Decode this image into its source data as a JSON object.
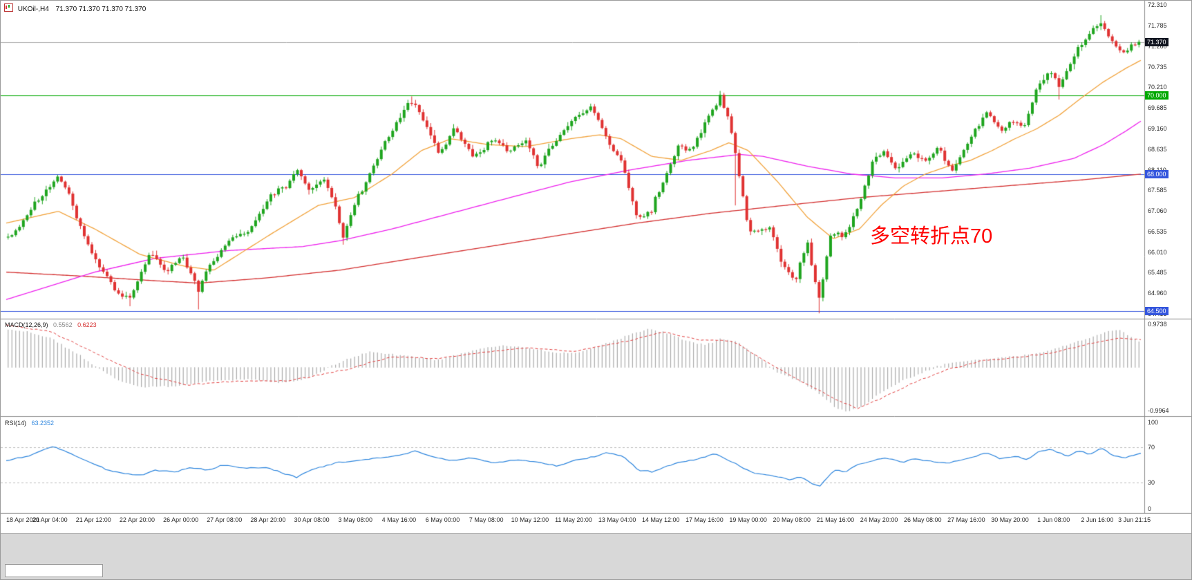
{
  "header": {
    "symbol": "UKOil-,H4",
    "ohlc": "71.370 71.370 71.370 71.370"
  },
  "annotation": {
    "text": "多空转折点70",
    "color": "#FF0000"
  },
  "levels": {
    "current_price": {
      "value": 71.37,
      "label": "71.370"
    },
    "hlines": [
      {
        "value": 70.0,
        "label": "70.000",
        "color": "#00A800"
      },
      {
        "value": 68.0,
        "label": "68.000",
        "color": "#3355DD"
      },
      {
        "value": 64.5,
        "label": "64.500",
        "color": "#3355DD"
      }
    ]
  },
  "panes": {
    "macd": {
      "label": "MACD(12,26,9)",
      "value_main": "0.5562",
      "value_signal": "0.6223",
      "axis_max_label": "0.9738",
      "axis_min_label": "-0.9964"
    },
    "rsi": {
      "label": "RSI(14)",
      "value": "63.2352",
      "axis_labels": [
        "100",
        "70",
        "30",
        "0"
      ]
    }
  },
  "colors": {
    "up": "#1FA51F",
    "down": "#E03232",
    "ma_fast": "#F2A33C",
    "ma_mid": "#EE22EE",
    "ma_slow": "#D43030",
    "macd_hist": "#ABABAB",
    "macd_signal": "#E34040",
    "rsi_line": "#2E86DE",
    "bid_line": "#A8A8A8",
    "badge_bg": "#10141F",
    "separator": "#8A8A8A",
    "tick_text": "#2a2a2a"
  },
  "chart_data": {
    "type": "candlestick",
    "title": "UKOil-,H4",
    "bars": 298,
    "price_axis": {
      "max": 72.42,
      "min": 64.33,
      "tick_labels": [
        "72.310",
        "71.785",
        "71.260",
        "70.735",
        "70.210",
        "69.685",
        "69.160",
        "68.635",
        "68.110",
        "67.585",
        "67.060",
        "66.535",
        "66.010",
        "65.485",
        "64.960",
        "64.435"
      ]
    },
    "x_tick_labels": [
      "18 Apr 2021",
      "20 Apr 04:00",
      "21 Apr 12:00",
      "22 Apr 20:00",
      "26 Apr 00:00",
      "27 Apr 08:00",
      "28 Apr 20:00",
      "30 Apr 08:00",
      "3 May 08:00",
      "4 May 16:00",
      "6 May 00:00",
      "7 May 08:00",
      "10 May 12:00",
      "11 May 20:00",
      "13 May 04:00",
      "14 May 12:00",
      "17 May 16:00",
      "19 May 00:00",
      "20 May 08:00",
      "21 May 16:00",
      "24 May 20:00",
      "26 May 08:00",
      "27 May 16:00",
      "30 May 20:00",
      "1 Jun 08:00",
      "2 Jun 16:00",
      "3 Jun 21:15"
    ],
    "price_path": [
      [
        0.004,
        66.4
      ],
      [
        0.026,
        67.3
      ],
      [
        0.046,
        67.95
      ],
      [
        0.055,
        67.5
      ],
      [
        0.062,
        66.9
      ],
      [
        0.078,
        65.8
      ],
      [
        0.098,
        65.0
      ],
      [
        0.108,
        64.8
      ],
      [
        0.118,
        65.4
      ],
      [
        0.127,
        66.05
      ],
      [
        0.141,
        65.5
      ],
      [
        0.154,
        65.9
      ],
      [
        0.165,
        65.35
      ],
      [
        0.169,
        64.95
      ],
      [
        0.176,
        65.5
      ],
      [
        0.196,
        66.3
      ],
      [
        0.216,
        66.6
      ],
      [
        0.232,
        67.4
      ],
      [
        0.248,
        67.75
      ],
      [
        0.255,
        68.1
      ],
      [
        0.268,
        67.6
      ],
      [
        0.281,
        67.9
      ],
      [
        0.29,
        67.2
      ],
      [
        0.297,
        66.45
      ],
      [
        0.307,
        67.2
      ],
      [
        0.327,
        68.4
      ],
      [
        0.344,
        69.3
      ],
      [
        0.356,
        69.9
      ],
      [
        0.369,
        69.3
      ],
      [
        0.382,
        68.5
      ],
      [
        0.395,
        69.2
      ],
      [
        0.412,
        68.4
      ],
      [
        0.428,
        68.9
      ],
      [
        0.444,
        68.6
      ],
      [
        0.458,
        68.85
      ],
      [
        0.469,
        68.15
      ],
      [
        0.484,
        68.9
      ],
      [
        0.497,
        69.3
      ],
      [
        0.516,
        69.75
      ],
      [
        0.529,
        68.9
      ],
      [
        0.542,
        68.3
      ],
      [
        0.557,
        66.85
      ],
      [
        0.569,
        67.1
      ],
      [
        0.58,
        67.9
      ],
      [
        0.592,
        68.7
      ],
      [
        0.605,
        68.6
      ],
      [
        0.618,
        69.4
      ],
      [
        0.629,
        70.0
      ],
      [
        0.637,
        69.4
      ],
      [
        0.644,
        68.3
      ],
      [
        0.654,
        66.6
      ],
      [
        0.663,
        66.5
      ],
      [
        0.673,
        66.7
      ],
      [
        0.685,
        65.6
      ],
      [
        0.696,
        65.3
      ],
      [
        0.706,
        66.3
      ],
      [
        0.716,
        64.8
      ],
      [
        0.727,
        66.5
      ],
      [
        0.738,
        66.4
      ],
      [
        0.753,
        67.3
      ],
      [
        0.763,
        68.3
      ],
      [
        0.774,
        68.6
      ],
      [
        0.784,
        68.1
      ],
      [
        0.799,
        68.6
      ],
      [
        0.81,
        68.3
      ],
      [
        0.822,
        68.65
      ],
      [
        0.833,
        68.05
      ],
      [
        0.85,
        68.9
      ],
      [
        0.864,
        69.6
      ],
      [
        0.876,
        69.1
      ],
      [
        0.889,
        69.35
      ],
      [
        0.897,
        69.2
      ],
      [
        0.908,
        70.1
      ],
      [
        0.92,
        70.65
      ],
      [
        0.929,
        70.25
      ],
      [
        0.945,
        71.3
      ],
      [
        0.955,
        71.55
      ],
      [
        0.964,
        71.85
      ],
      [
        0.974,
        71.4
      ],
      [
        0.984,
        71.1
      ],
      [
        0.996,
        71.37
      ]
    ],
    "wick_events": [
      {
        "f": 0.108,
        "low": 64.63
      },
      {
        "f": 0.169,
        "low": 64.55
      },
      {
        "f": 0.297,
        "low": 66.2
      },
      {
        "f": 0.356,
        "high": 69.98
      },
      {
        "f": 0.629,
        "high": 70.12
      },
      {
        "f": 0.644,
        "low": 67.2
      },
      {
        "f": 0.716,
        "low": 64.45
      },
      {
        "f": 0.929,
        "low": 69.9
      },
      {
        "f": 0.964,
        "high": 72.05
      }
    ],
    "ma_fast": [
      [
        0,
        66.75
      ],
      [
        0.046,
        67.05
      ],
      [
        0.078,
        66.6
      ],
      [
        0.118,
        65.95
      ],
      [
        0.157,
        65.65
      ],
      [
        0.183,
        65.55
      ],
      [
        0.235,
        66.5
      ],
      [
        0.275,
        67.2
      ],
      [
        0.307,
        67.4
      ],
      [
        0.34,
        68.0
      ],
      [
        0.366,
        68.6
      ],
      [
        0.392,
        68.9
      ],
      [
        0.425,
        68.75
      ],
      [
        0.458,
        68.7
      ],
      [
        0.497,
        68.9
      ],
      [
        0.523,
        69.0
      ],
      [
        0.542,
        68.9
      ],
      [
        0.569,
        68.45
      ],
      [
        0.595,
        68.35
      ],
      [
        0.621,
        68.6
      ],
      [
        0.637,
        68.8
      ],
      [
        0.654,
        68.6
      ],
      [
        0.68,
        67.8
      ],
      [
        0.706,
        66.9
      ],
      [
        0.729,
        66.35
      ],
      [
        0.752,
        66.6
      ],
      [
        0.771,
        67.2
      ],
      [
        0.791,
        67.7
      ],
      [
        0.81,
        68.0
      ],
      [
        0.83,
        68.2
      ],
      [
        0.85,
        68.35
      ],
      [
        0.869,
        68.6
      ],
      [
        0.889,
        68.9
      ],
      [
        0.908,
        69.15
      ],
      [
        0.928,
        69.5
      ],
      [
        0.948,
        69.95
      ],
      [
        0.967,
        70.35
      ],
      [
        0.987,
        70.7
      ],
      [
        1,
        70.9
      ]
    ],
    "ma_mid": [
      [
        0,
        64.8
      ],
      [
        0.078,
        65.5
      ],
      [
        0.131,
        65.85
      ],
      [
        0.196,
        66.05
      ],
      [
        0.261,
        66.15
      ],
      [
        0.294,
        66.3
      ],
      [
        0.34,
        66.6
      ],
      [
        0.392,
        67.0
      ],
      [
        0.444,
        67.4
      ],
      [
        0.497,
        67.8
      ],
      [
        0.549,
        68.1
      ],
      [
        0.601,
        68.35
      ],
      [
        0.647,
        68.5
      ],
      [
        0.667,
        68.45
      ],
      [
        0.706,
        68.2
      ],
      [
        0.745,
        68.0
      ],
      [
        0.784,
        67.9
      ],
      [
        0.824,
        67.9
      ],
      [
        0.863,
        68.0
      ],
      [
        0.902,
        68.15
      ],
      [
        0.941,
        68.4
      ],
      [
        0.967,
        68.75
      ],
      [
        0.987,
        69.1
      ],
      [
        1,
        69.35
      ]
    ],
    "ma_slow": [
      [
        0,
        65.5
      ],
      [
        0.065,
        65.4
      ],
      [
        0.131,
        65.28
      ],
      [
        0.17,
        65.22
      ],
      [
        0.229,
        65.35
      ],
      [
        0.294,
        65.55
      ],
      [
        0.359,
        65.85
      ],
      [
        0.425,
        66.15
      ],
      [
        0.49,
        66.45
      ],
      [
        0.556,
        66.75
      ],
      [
        0.621,
        67.0
      ],
      [
        0.686,
        67.2
      ],
      [
        0.752,
        67.4
      ],
      [
        0.817,
        67.55
      ],
      [
        0.882,
        67.7
      ],
      [
        0.948,
        67.85
      ],
      [
        1,
        68.0
      ]
    ],
    "macd": {
      "axis_max": 0.9738,
      "axis_min": -0.9964,
      "hist": [
        [
          0,
          0.85
        ],
        [
          0.02,
          0.8
        ],
        [
          0.04,
          0.65
        ],
        [
          0.06,
          0.35
        ],
        [
          0.08,
          0.0
        ],
        [
          0.1,
          -0.3
        ],
        [
          0.12,
          -0.45
        ],
        [
          0.15,
          -0.42
        ],
        [
          0.18,
          -0.3
        ],
        [
          0.21,
          -0.26
        ],
        [
          0.24,
          -0.34
        ],
        [
          0.26,
          -0.28
        ],
        [
          0.28,
          -0.06
        ],
        [
          0.3,
          0.18
        ],
        [
          0.32,
          0.34
        ],
        [
          0.34,
          0.3
        ],
        [
          0.36,
          0.24
        ],
        [
          0.38,
          0.16
        ],
        [
          0.4,
          0.3
        ],
        [
          0.42,
          0.44
        ],
        [
          0.44,
          0.5
        ],
        [
          0.46,
          0.44
        ],
        [
          0.48,
          0.34
        ],
        [
          0.5,
          0.32
        ],
        [
          0.52,
          0.46
        ],
        [
          0.545,
          0.7
        ],
        [
          0.565,
          0.86
        ],
        [
          0.58,
          0.8
        ],
        [
          0.6,
          0.6
        ],
        [
          0.615,
          0.5
        ],
        [
          0.63,
          0.64
        ],
        [
          0.645,
          0.58
        ],
        [
          0.66,
          0.28
        ],
        [
          0.68,
          -0.12
        ],
        [
          0.7,
          -0.32
        ],
        [
          0.715,
          -0.55
        ],
        [
          0.73,
          -0.88
        ],
        [
          0.74,
          -0.99
        ],
        [
          0.755,
          -0.88
        ],
        [
          0.77,
          -0.58
        ],
        [
          0.79,
          -0.3
        ],
        [
          0.81,
          -0.08
        ],
        [
          0.83,
          0.1
        ],
        [
          0.85,
          0.16
        ],
        [
          0.87,
          0.2
        ],
        [
          0.89,
          0.26
        ],
        [
          0.91,
          0.32
        ],
        [
          0.93,
          0.46
        ],
        [
          0.95,
          0.62
        ],
        [
          0.97,
          0.8
        ],
        [
          0.98,
          0.86
        ],
        [
          0.99,
          0.7
        ],
        [
          1,
          0.5562
        ]
      ],
      "signal": [
        [
          0,
          0.95
        ],
        [
          0.04,
          0.8
        ],
        [
          0.08,
          0.3
        ],
        [
          0.12,
          -0.18
        ],
        [
          0.16,
          -0.4
        ],
        [
          0.2,
          -0.32
        ],
        [
          0.25,
          -0.3
        ],
        [
          0.3,
          -0.05
        ],
        [
          0.34,
          0.24
        ],
        [
          0.38,
          0.2
        ],
        [
          0.42,
          0.34
        ],
        [
          0.46,
          0.44
        ],
        [
          0.5,
          0.36
        ],
        [
          0.55,
          0.6
        ],
        [
          0.58,
          0.8
        ],
        [
          0.61,
          0.62
        ],
        [
          0.64,
          0.6
        ],
        [
          0.67,
          0.12
        ],
        [
          0.7,
          -0.3
        ],
        [
          0.735,
          -0.78
        ],
        [
          0.75,
          -0.93
        ],
        [
          0.77,
          -0.72
        ],
        [
          0.8,
          -0.34
        ],
        [
          0.83,
          -0.05
        ],
        [
          0.86,
          0.14
        ],
        [
          0.89,
          0.22
        ],
        [
          0.92,
          0.32
        ],
        [
          0.95,
          0.5
        ],
        [
          0.98,
          0.66
        ],
        [
          1,
          0.6223
        ]
      ]
    },
    "rsi": {
      "levels": [
        70,
        30
      ],
      "line": [
        [
          0,
          55
        ],
        [
          0.02,
          60
        ],
        [
          0.04,
          71
        ],
        [
          0.05,
          67
        ],
        [
          0.07,
          55
        ],
        [
          0.09,
          44
        ],
        [
          0.1,
          41
        ],
        [
          0.12,
          38
        ],
        [
          0.13,
          44
        ],
        [
          0.15,
          42
        ],
        [
          0.16,
          47
        ],
        [
          0.18,
          44
        ],
        [
          0.19,
          50
        ],
        [
          0.21,
          46
        ],
        [
          0.23,
          47
        ],
        [
          0.245,
          40
        ],
        [
          0.256,
          36
        ],
        [
          0.27,
          45
        ],
        [
          0.29,
          52
        ],
        [
          0.31,
          55
        ],
        [
          0.33,
          58
        ],
        [
          0.35,
          62
        ],
        [
          0.36,
          66
        ],
        [
          0.375,
          60
        ],
        [
          0.39,
          55
        ],
        [
          0.41,
          58
        ],
        [
          0.43,
          52
        ],
        [
          0.45,
          56
        ],
        [
          0.47,
          53
        ],
        [
          0.485,
          49
        ],
        [
          0.5,
          55
        ],
        [
          0.52,
          60
        ],
        [
          0.53,
          64
        ],
        [
          0.545,
          59
        ],
        [
          0.557,
          44
        ],
        [
          0.57,
          42
        ],
        [
          0.59,
          52
        ],
        [
          0.61,
          57
        ],
        [
          0.625,
          63
        ],
        [
          0.637,
          55
        ],
        [
          0.65,
          46
        ],
        [
          0.66,
          40
        ],
        [
          0.675,
          38
        ],
        [
          0.69,
          33
        ],
        [
          0.7,
          36
        ],
        [
          0.71,
          29
        ],
        [
          0.717,
          26
        ],
        [
          0.73,
          44
        ],
        [
          0.74,
          42
        ],
        [
          0.75,
          50
        ],
        [
          0.765,
          55
        ],
        [
          0.775,
          58
        ],
        [
          0.79,
          53
        ],
        [
          0.8,
          57
        ],
        [
          0.815,
          54
        ],
        [
          0.83,
          52
        ],
        [
          0.85,
          58
        ],
        [
          0.864,
          64
        ],
        [
          0.876,
          57
        ],
        [
          0.89,
          60
        ],
        [
          0.9,
          56
        ],
        [
          0.91,
          65
        ],
        [
          0.92,
          68
        ],
        [
          0.935,
          60
        ],
        [
          0.945,
          66
        ],
        [
          0.955,
          62
        ],
        [
          0.965,
          70
        ],
        [
          0.975,
          61
        ],
        [
          0.985,
          58
        ],
        [
          1,
          63.2352
        ]
      ]
    }
  }
}
